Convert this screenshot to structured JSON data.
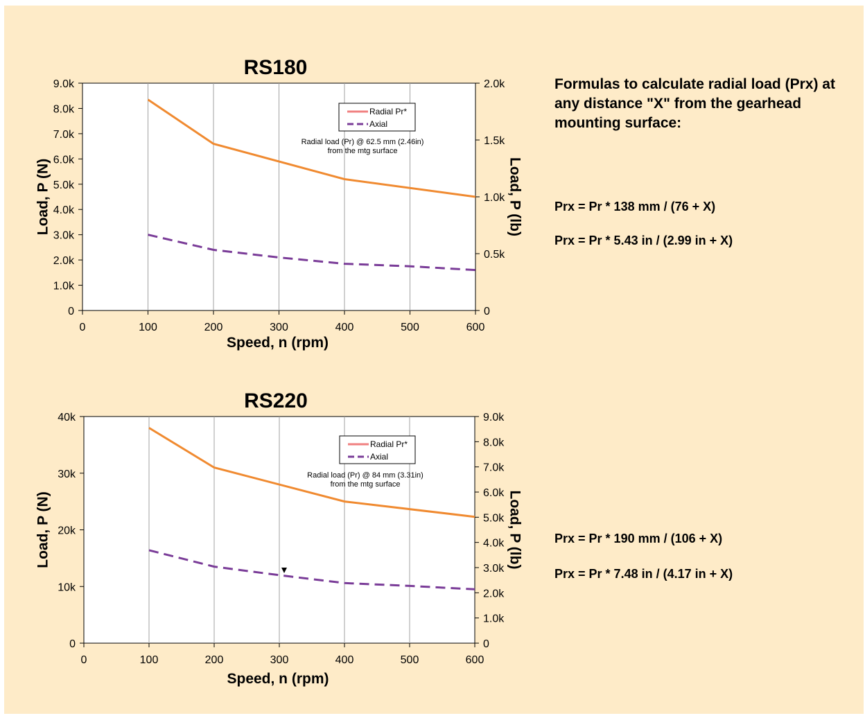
{
  "colors": {
    "background": "#feebc8",
    "plot_bg": "#ffffff",
    "grid": "#a0a0a0",
    "radial": "#f08a30",
    "radial_legend": "#f08080",
    "axial": "#7a3c98"
  },
  "formulas": {
    "heading": "Formulas to calculate radial load (Prx) at any distance \"X\" from the gearhead mounting surface:",
    "rs180_mm": "Prx = Pr * 138 mm / (76 + X)",
    "rs180_in": "Prx = Pr * 5.43 in / (2.99 in + X)",
    "rs220_mm": "Prx = Pr * 190 mm / (106 + X)",
    "rs220_in": "Prx = Pr * 7.48 in / (4.17 in + X)"
  },
  "chart_data": [
    {
      "type": "line",
      "title": "RS180",
      "xlabel": "Speed, n (rpm)",
      "ylabel": "Load, P (N)",
      "y2label": "Load, P (lb)",
      "xlim": [
        0,
        600
      ],
      "ylim": [
        0,
        9000
      ],
      "y2lim": [
        0,
        2000
      ],
      "x_ticks": [
        "0",
        "100",
        "200",
        "300",
        "400",
        "500",
        "600"
      ],
      "x_tick_values": [
        0,
        100,
        200,
        300,
        400,
        500,
        600
      ],
      "y_ticks": [
        "0",
        "1.0k",
        "2.0k",
        "3.0k",
        "4.0k",
        "5.0k",
        "6.0k",
        "7.0k",
        "8.0k",
        "9.0k"
      ],
      "y_tick_values": [
        0,
        1000,
        2000,
        3000,
        4000,
        5000,
        6000,
        7000,
        8000,
        9000
      ],
      "y2_ticks": [
        "0",
        "0.5k",
        "1.0k",
        "1.5k",
        "2.0k"
      ],
      "y2_tick_values": [
        0,
        500,
        1000,
        1500,
        2000
      ],
      "grid": true,
      "legend_position": "top-right",
      "annotation": [
        "Radial load (Pr) @ 62.5 mm (2.46in)",
        "from the mtg surface"
      ],
      "series": [
        {
          "name": "Radial Pr*",
          "style": "solid",
          "x": [
            100,
            200,
            400,
            600
          ],
          "values": [
            8350,
            6600,
            5200,
            4500
          ]
        },
        {
          "name": "Axial",
          "style": "dashed",
          "x": [
            100,
            200,
            300,
            400,
            500,
            600
          ],
          "values": [
            3000,
            2400,
            2100,
            1850,
            1750,
            1600
          ]
        }
      ]
    },
    {
      "type": "line",
      "title": "RS220",
      "xlabel": "Speed, n (rpm)",
      "ylabel": "Load, P (N)",
      "y2label": "Load, P (lb)",
      "xlim": [
        0,
        600
      ],
      "ylim": [
        0,
        40000
      ],
      "y2lim": [
        0,
        9000
      ],
      "x_ticks": [
        "0",
        "100",
        "200",
        "300",
        "400",
        "500",
        "600"
      ],
      "x_tick_values": [
        0,
        100,
        200,
        300,
        400,
        500,
        600
      ],
      "y_ticks": [
        "0",
        "10k",
        "20k",
        "30k",
        "40k"
      ],
      "y_tick_values": [
        0,
        10000,
        20000,
        30000,
        40000
      ],
      "y2_ticks": [
        "0",
        "1.0k",
        "2.0k",
        "3.0k",
        "4.0k",
        "5.0k",
        "6.0k",
        "7.0k",
        "8.0k",
        "9.0k"
      ],
      "y2_tick_values": [
        0,
        1000,
        2000,
        3000,
        4000,
        5000,
        6000,
        7000,
        8000,
        9000
      ],
      "grid": true,
      "legend_position": "top-right",
      "annotation": [
        "Radial load (Pr) @ 84 mm (3.31in)",
        "from the mtg surface"
      ],
      "series": [
        {
          "name": "Radial Pr*",
          "style": "solid",
          "x": [
            100,
            200,
            400,
            600
          ],
          "values": [
            38000,
            31000,
            25000,
            22300
          ]
        },
        {
          "name": "Axial",
          "style": "dashed",
          "x": [
            100,
            200,
            300,
            400,
            500,
            600
          ],
          "values": [
            16400,
            13500,
            12000,
            10600,
            10100,
            9500
          ]
        }
      ]
    }
  ]
}
